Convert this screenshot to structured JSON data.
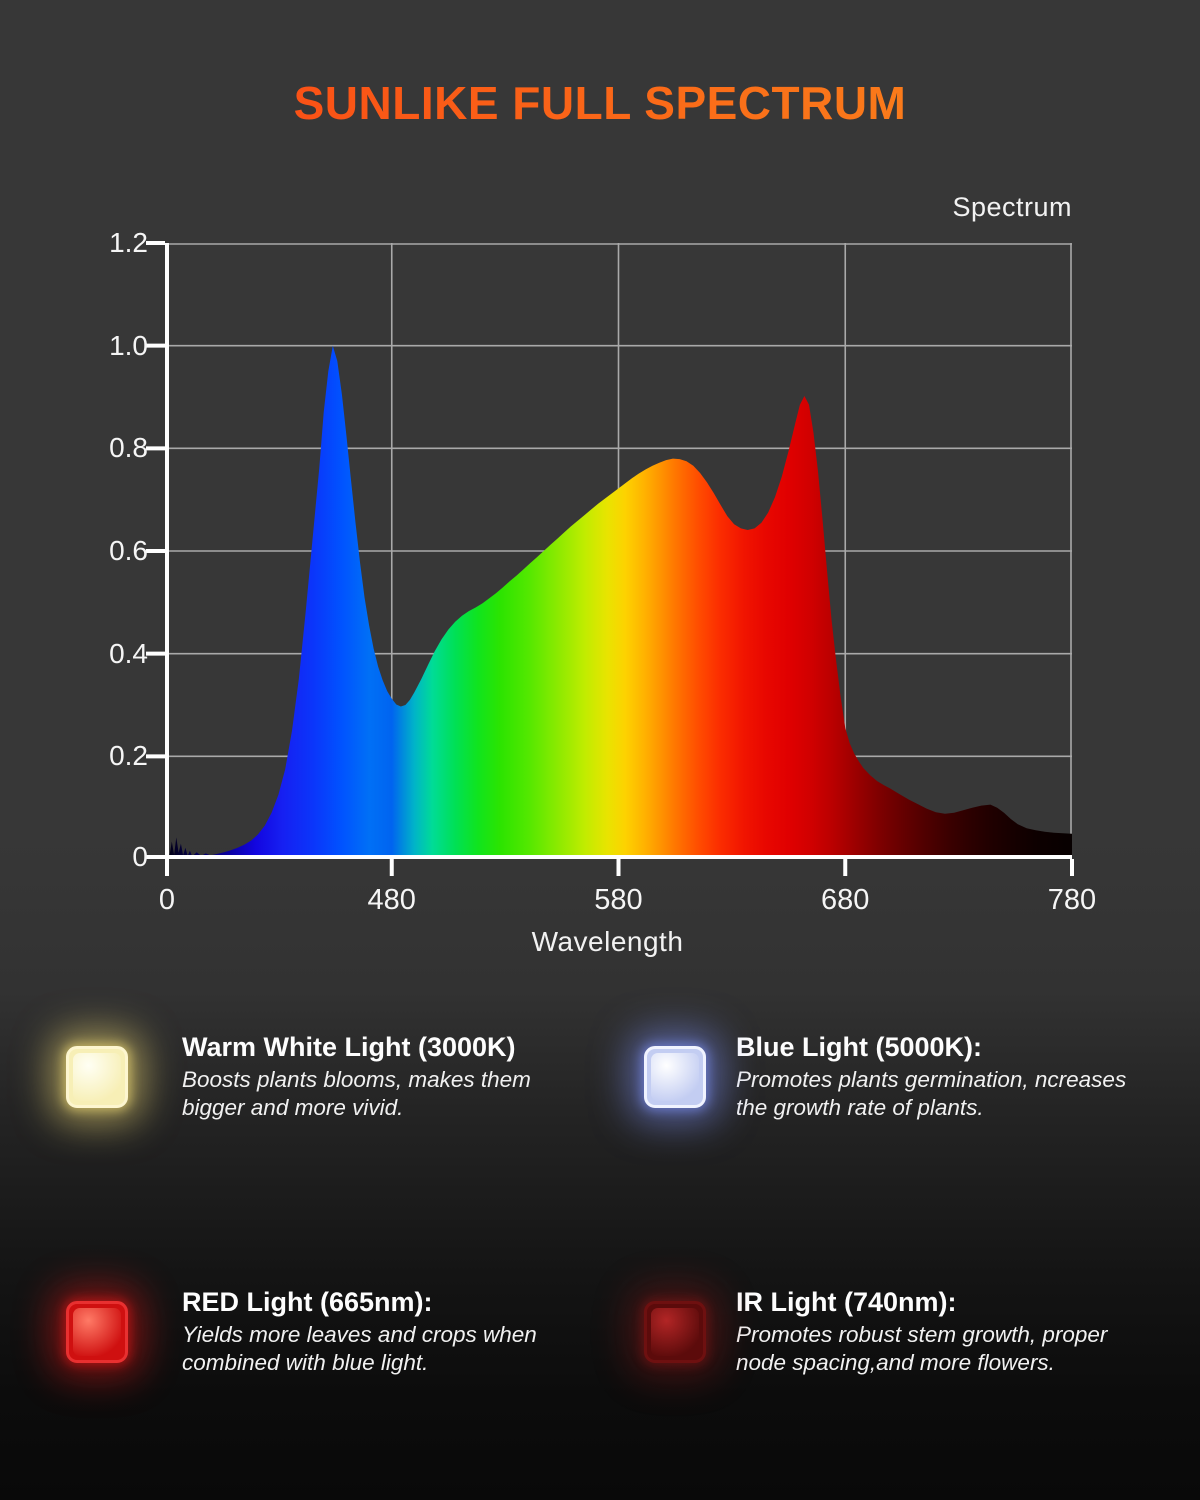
{
  "title": {
    "text": "SUNLIKE FULL SPECTRUM",
    "gradient_from": "#f93e14",
    "gradient_to": "#fb8e1c"
  },
  "chart_data": {
    "type": "area",
    "title": "Spectrum",
    "xlabel": "Wavelength",
    "ylabel": "",
    "grid": true,
    "x_axis": {
      "range_nm": [
        380,
        780
      ],
      "ticks": [
        {
          "nm": 380,
          "label": "0",
          "grid": false
        },
        {
          "nm": 480,
          "label": "480",
          "grid": true
        },
        {
          "nm": 580,
          "label": "580",
          "grid": true
        },
        {
          "nm": 680,
          "label": "680",
          "grid": true
        },
        {
          "nm": 780,
          "label": "780",
          "grid": true
        }
      ]
    },
    "y_axis": {
      "range": [
        0,
        1.2
      ],
      "ticks": [
        {
          "v": 0,
          "label": "0"
        },
        {
          "v": 0.2,
          "label": "0.2"
        },
        {
          "v": 0.4,
          "label": "0.4"
        },
        {
          "v": 0.6,
          "label": "0.6"
        },
        {
          "v": 0.8,
          "label": "0.8"
        },
        {
          "v": 1.0,
          "label": "1.0"
        },
        {
          "v": 1.2,
          "label": "1.2"
        }
      ]
    },
    "colors": {
      "axis": "#ffffff",
      "grid": "#a9a9a9",
      "labels": "#f5f5f5"
    },
    "spectrum_gradient": [
      [
        380,
        "#02000f"
      ],
      [
        395,
        "#05005a"
      ],
      [
        408,
        "#0a00a0"
      ],
      [
        420,
        "#1306e0"
      ],
      [
        432,
        "#1620f2"
      ],
      [
        445,
        "#0b35fa"
      ],
      [
        458,
        "#0053ff"
      ],
      [
        470,
        "#0070f6"
      ],
      [
        480,
        "#0064f0"
      ],
      [
        490,
        "#00b4c8"
      ],
      [
        498,
        "#00dc96"
      ],
      [
        508,
        "#00e055"
      ],
      [
        518,
        "#10e41e"
      ],
      [
        528,
        "#2ce400"
      ],
      [
        540,
        "#52e800"
      ],
      [
        552,
        "#86ea00"
      ],
      [
        565,
        "#c0ec00"
      ],
      [
        575,
        "#e8e400"
      ],
      [
        583,
        "#fdd200"
      ],
      [
        592,
        "#ffb000"
      ],
      [
        600,
        "#ff8d00"
      ],
      [
        608,
        "#ff6a00"
      ],
      [
        616,
        "#ff4a00"
      ],
      [
        625,
        "#fb2c00"
      ],
      [
        635,
        "#f11500"
      ],
      [
        645,
        "#e80700"
      ],
      [
        655,
        "#e00000"
      ],
      [
        665,
        "#d00000"
      ],
      [
        675,
        "#b80000"
      ],
      [
        685,
        "#9a0000"
      ],
      [
        695,
        "#7e0000"
      ],
      [
        705,
        "#660000"
      ],
      [
        715,
        "#500000"
      ],
      [
        725,
        "#3c0000"
      ],
      [
        735,
        "#2c0000"
      ],
      [
        745,
        "#1f0000"
      ],
      [
        755,
        "#150000"
      ],
      [
        765,
        "#0d0000"
      ],
      [
        780,
        "#070000"
      ]
    ],
    "points": [
      [
        380,
        0.004
      ],
      [
        381,
        0.028
      ],
      [
        382,
        0.006
      ],
      [
        383,
        0.034
      ],
      [
        384,
        0.008
      ],
      [
        385,
        0.042
      ],
      [
        386,
        0.012
      ],
      [
        387,
        0.03
      ],
      [
        388,
        0.007
      ],
      [
        389,
        0.022
      ],
      [
        390,
        0.006
      ],
      [
        391,
        0.016
      ],
      [
        392,
        0.005
      ],
      [
        394,
        0.013
      ],
      [
        396,
        0.006
      ],
      [
        398,
        0.011
      ],
      [
        400,
        0.007
      ],
      [
        403,
        0.01
      ],
      [
        406,
        0.013
      ],
      [
        409,
        0.017
      ],
      [
        412,
        0.022
      ],
      [
        415,
        0.028
      ],
      [
        418,
        0.036
      ],
      [
        421,
        0.048
      ],
      [
        424,
        0.065
      ],
      [
        427,
        0.09
      ],
      [
        430,
        0.125
      ],
      [
        433,
        0.175
      ],
      [
        436,
        0.25
      ],
      [
        439,
        0.35
      ],
      [
        442,
        0.48
      ],
      [
        445,
        0.62
      ],
      [
        448,
        0.76
      ],
      [
        450,
        0.87
      ],
      [
        452,
        0.95
      ],
      [
        454,
        1.0
      ],
      [
        456,
        0.97
      ],
      [
        458,
        0.905
      ],
      [
        460,
        0.825
      ],
      [
        462,
        0.74
      ],
      [
        464,
        0.655
      ],
      [
        466,
        0.578
      ],
      [
        468,
        0.51
      ],
      [
        470,
        0.455
      ],
      [
        472,
        0.41
      ],
      [
        474,
        0.375
      ],
      [
        476,
        0.348
      ],
      [
        478,
        0.327
      ],
      [
        480,
        0.312
      ],
      [
        482,
        0.301
      ],
      [
        484,
        0.297
      ],
      [
        486,
        0.3
      ],
      [
        488,
        0.31
      ],
      [
        490,
        0.325
      ],
      [
        493,
        0.35
      ],
      [
        496,
        0.378
      ],
      [
        499,
        0.405
      ],
      [
        502,
        0.428
      ],
      [
        505,
        0.447
      ],
      [
        508,
        0.462
      ],
      [
        511,
        0.474
      ],
      [
        514,
        0.483
      ],
      [
        517,
        0.49
      ],
      [
        520,
        0.498
      ],
      [
        523,
        0.508
      ],
      [
        526,
        0.518
      ],
      [
        529,
        0.529
      ],
      [
        532,
        0.541
      ],
      [
        535,
        0.552
      ],
      [
        538,
        0.564
      ],
      [
        541,
        0.576
      ],
      [
        544,
        0.588
      ],
      [
        547,
        0.6
      ],
      [
        550,
        0.612
      ],
      [
        553,
        0.624
      ],
      [
        556,
        0.636
      ],
      [
        559,
        0.648
      ],
      [
        562,
        0.659
      ],
      [
        565,
        0.67
      ],
      [
        568,
        0.681
      ],
      [
        571,
        0.692
      ],
      [
        574,
        0.702
      ],
      [
        577,
        0.712
      ],
      [
        580,
        0.722
      ],
      [
        583,
        0.732
      ],
      [
        586,
        0.742
      ],
      [
        589,
        0.751
      ],
      [
        592,
        0.759
      ],
      [
        595,
        0.766
      ],
      [
        598,
        0.772
      ],
      [
        601,
        0.777
      ],
      [
        604,
        0.78
      ],
      [
        607,
        0.779
      ],
      [
        610,
        0.775
      ],
      [
        613,
        0.766
      ],
      [
        616,
        0.752
      ],
      [
        619,
        0.734
      ],
      [
        622,
        0.713
      ],
      [
        625,
        0.69
      ],
      [
        628,
        0.668
      ],
      [
        631,
        0.652
      ],
      [
        634,
        0.644
      ],
      [
        637,
        0.641
      ],
      [
        640,
        0.644
      ],
      [
        643,
        0.655
      ],
      [
        646,
        0.675
      ],
      [
        649,
        0.705
      ],
      [
        652,
        0.745
      ],
      [
        655,
        0.795
      ],
      [
        658,
        0.85
      ],
      [
        660,
        0.885
      ],
      [
        662,
        0.902
      ],
      [
        664,
        0.885
      ],
      [
        666,
        0.83
      ],
      [
        668,
        0.755
      ],
      [
        670,
        0.66
      ],
      [
        672,
        0.56
      ],
      [
        674,
        0.465
      ],
      [
        676,
        0.385
      ],
      [
        678,
        0.315
      ],
      [
        680,
        0.255
      ],
      [
        682,
        0.225
      ],
      [
        684,
        0.205
      ],
      [
        686,
        0.19
      ],
      [
        688,
        0.177
      ],
      [
        691,
        0.163
      ],
      [
        694,
        0.152
      ],
      [
        697,
        0.144
      ],
      [
        700,
        0.137
      ],
      [
        704,
        0.126
      ],
      [
        708,
        0.116
      ],
      [
        712,
        0.107
      ],
      [
        716,
        0.098
      ],
      [
        720,
        0.091
      ],
      [
        724,
        0.088
      ],
      [
        728,
        0.09
      ],
      [
        732,
        0.095
      ],
      [
        736,
        0.1
      ],
      [
        740,
        0.104
      ],
      [
        744,
        0.106
      ],
      [
        747,
        0.1
      ],
      [
        750,
        0.09
      ],
      [
        753,
        0.078
      ],
      [
        756,
        0.068
      ],
      [
        760,
        0.06
      ],
      [
        764,
        0.056
      ],
      [
        768,
        0.053
      ],
      [
        772,
        0.051
      ],
      [
        776,
        0.05
      ],
      [
        780,
        0.049
      ]
    ]
  },
  "legend": {
    "items": [
      {
        "name": "warm-white",
        "title": "Warm White Light (3000K)",
        "lines": [
          "Boosts plants blooms, makes them",
          "bigger and more vivid."
        ],
        "colors": {
          "chip": "#f7efb6",
          "core": "#fffff4",
          "border": "#fdf6cf",
          "glow": "rgba(243,220,118,0.55)"
        }
      },
      {
        "name": "blue",
        "title": "Blue Light (5000K):",
        "lines": [
          "Promotes plants germination, ncreases",
          "the growth rate of plants."
        ],
        "colors": {
          "chip": "#c3cdf2",
          "core": "#ffffff",
          "border": "#f0f3ff",
          "glow": "rgba(130,150,255,0.5)"
        }
      },
      {
        "name": "red",
        "title": "RED Light (665nm):",
        "lines": [
          "Yields more leaves and crops when",
          "combined with blue light."
        ],
        "colors": {
          "chip": "#cf1010",
          "core": "#ff7a66",
          "border": "#e83030",
          "glow": "rgba(255,25,25,0.42)"
        }
      },
      {
        "name": "ir",
        "title": "IR Light (740nm):",
        "lines": [
          "Promotes robust stem growth, proper",
          "node spacing,and more flowers."
        ],
        "colors": {
          "chip": "#5c0b0b",
          "core": "#b22525",
          "border": "#6e1010",
          "glow": "rgba(170,25,25,0.32)"
        }
      }
    ]
  }
}
